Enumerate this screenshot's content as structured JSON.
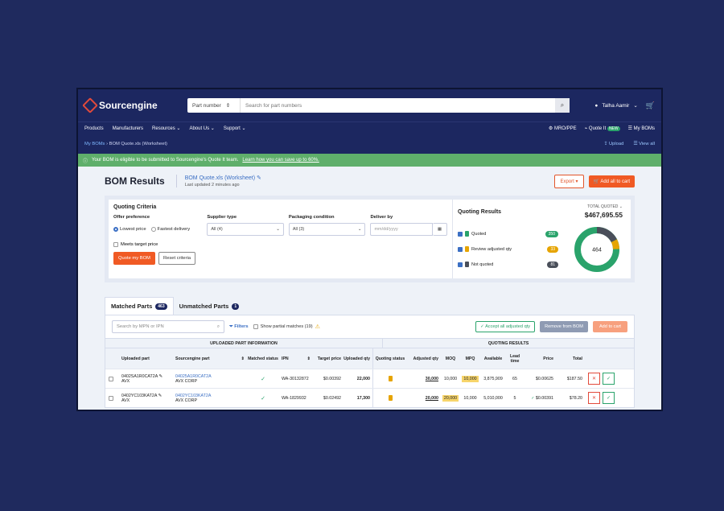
{
  "header": {
    "brand": "Sourcengine",
    "search_type": "Part number",
    "search_placeholder": "Search for part numbers",
    "user_name": "Talha Aamir"
  },
  "nav": {
    "items": [
      "Products",
      "Manufacturers",
      "Resources",
      "About Us",
      "Support"
    ],
    "mro": "MRO/PPE",
    "quote_it": "Quote It",
    "new_badge": "NEW",
    "my_boms": "My BOMs"
  },
  "breadcrumb": {
    "root": "My BOMs",
    "current": "BOM Quote.xls (Worksheet)",
    "upload": "Upload",
    "view_all": "View all"
  },
  "banner": {
    "text": "Your BOM is eligible to be submitted to Sourcengine's Quote It team.",
    "link": "Learn how you can save up to 60%."
  },
  "page": {
    "title": "BOM Results",
    "file_name": "BOM Quote.xls (Worksheet)",
    "last_updated": "Last updated 2 minutes ago",
    "export_label": "Export",
    "add_all_label": "Add all to cart"
  },
  "criteria": {
    "title": "Quoting Criteria",
    "offer_label": "Offer preference",
    "lowest_price": "Lowest price",
    "fastest_delivery": "Fastest delivery",
    "meets_target": "Meets target price",
    "supplier_label": "Supplier type",
    "supplier_value": "All (4)",
    "packaging_label": "Packaging condition",
    "packaging_value": "All (3)",
    "deliver_label": "Deliver by",
    "deliver_placeholder": "mm/dd/yyyy",
    "quote_btn": "Quote my BOM",
    "reset_btn": "Reset criteria"
  },
  "results": {
    "title": "Quoting Results",
    "total_label": "TOTAL QUOTED",
    "total_value": "$467,695.55",
    "items": [
      {
        "label": "Quoted",
        "count": "350",
        "color": "#2aa36b"
      },
      {
        "label": "Review adjusted qty",
        "count": "33",
        "color": "#e6a400"
      },
      {
        "label": "Not quoted",
        "count": "81",
        "color": "#4a4f5a"
      }
    ],
    "donut_center": "464"
  },
  "tabs": {
    "matched": "Matched Parts",
    "matched_count": "463",
    "unmatched": "Unmatched Parts",
    "unmatched_count": "1"
  },
  "toolbar": {
    "search_placeholder": "Search by MPN or IPN",
    "filters": "Filters",
    "partial": "Show partial matches (19)",
    "accept": "Accept all adjusted qty",
    "remove": "Remove from BOM",
    "add_cart": "Add to cart"
  },
  "table": {
    "section_uploaded": "UPLOADED PART INFORMATION",
    "section_quoting": "QUOTING RESULTS",
    "columns": [
      "Uploaded part",
      "Sourcengine part",
      "Matched status",
      "IPN",
      "Target price",
      "Uploaded qty",
      "Quoting status",
      "Adjusted qty",
      "MOQ",
      "MPQ",
      "Available",
      "Lead time",
      "Price",
      "Total"
    ],
    "rows": [
      {
        "uploaded_part": "0402SA1R0CAT2A",
        "uploaded_mfr": "AVX",
        "se_part": "04025A1R0CAT2A",
        "se_mfr": "AVX CORP",
        "ipn": "WA-30132872",
        "target": "$0.00392",
        "qty": "22,000",
        "adj": "30,000",
        "moq": "10,000",
        "mpq": "10,000",
        "available": "3,875,909",
        "lead": "65",
        "price": "$0.00625",
        "total": "$187.50"
      },
      {
        "uploaded_part": "0402YC103KAT2A",
        "uploaded_mfr": "AVX",
        "se_part": "0402YC103KAT2A",
        "se_mfr": "AVX CORP",
        "ipn": "WA-1829932",
        "target": "$0.02492",
        "qty": "17,300",
        "adj": "20,000",
        "moq": "20,000",
        "mpq": "10,000",
        "available": "5,010,000",
        "lead": "5",
        "price": "$0.00391",
        "total": "$78.20"
      }
    ]
  }
}
